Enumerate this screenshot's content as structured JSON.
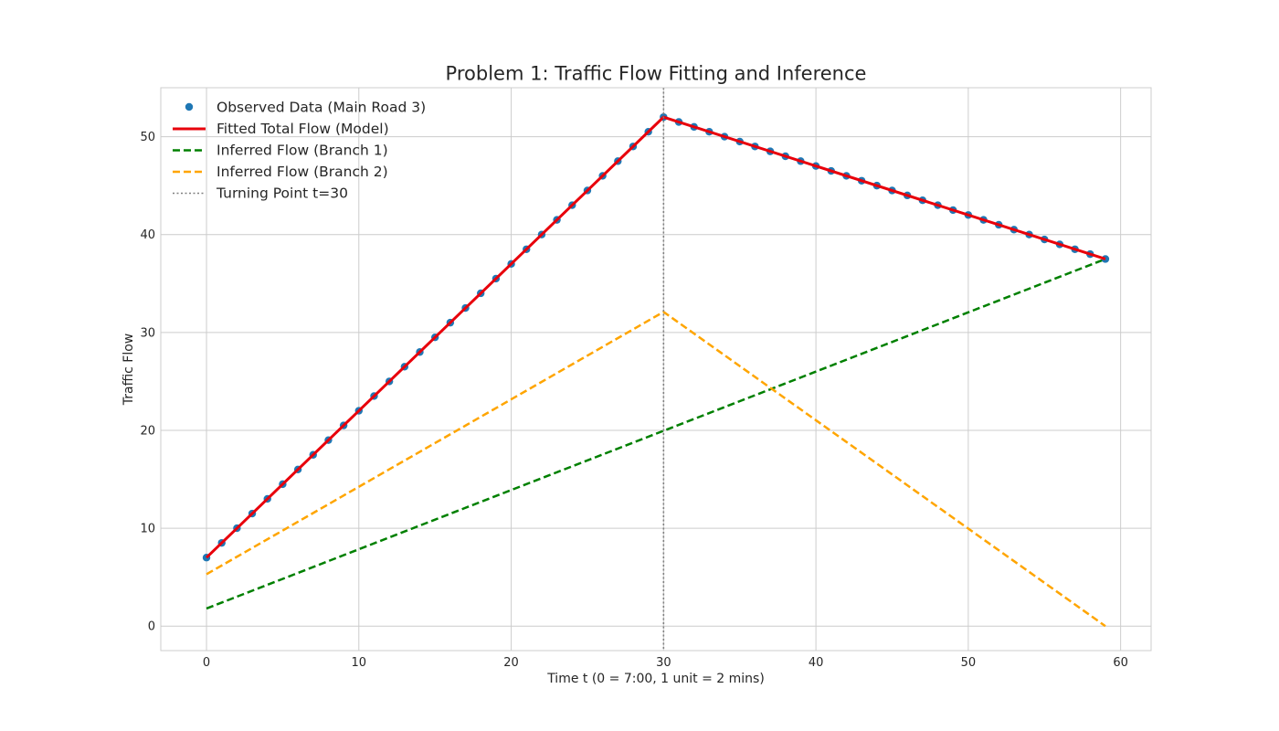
{
  "chart_data": {
    "type": "line",
    "title": "Problem 1: Traffic Flow Fitting and Inference",
    "xlabel": "Time t (0 = 7:00, 1 unit = 2 mins)",
    "ylabel": "Traffic Flow",
    "xlim": [
      -3,
      62
    ],
    "ylim": [
      -2.5,
      55
    ],
    "xticks": [
      0,
      10,
      20,
      30,
      40,
      50,
      60
    ],
    "yticks": [
      0,
      10,
      20,
      30,
      40,
      50
    ],
    "grid": true,
    "legend_position": "top-left",
    "turning_point": {
      "x": 30,
      "label": "Turning Point t=30",
      "color": "#808080"
    },
    "observed": {
      "name": "Observed Data (Main Road 3)",
      "color": "#1f77b4",
      "x": [
        0,
        1,
        2,
        3,
        4,
        5,
        6,
        7,
        8,
        9,
        10,
        11,
        12,
        13,
        14,
        15,
        16,
        17,
        18,
        19,
        20,
        21,
        22,
        23,
        24,
        25,
        26,
        27,
        28,
        29,
        30,
        31,
        32,
        33,
        34,
        35,
        36,
        37,
        38,
        39,
        40,
        41,
        42,
        43,
        44,
        45,
        46,
        47,
        48,
        49,
        50,
        51,
        52,
        53,
        54,
        55,
        56,
        57,
        58,
        59
      ],
      "y": [
        7,
        8.5,
        10,
        11.5,
        13,
        14.5,
        16,
        17.5,
        19,
        20.5,
        22,
        23.5,
        25,
        26.5,
        28,
        29.5,
        31,
        32.5,
        34,
        35.5,
        37,
        38.5,
        40,
        41.5,
        43,
        44.5,
        46,
        47.5,
        49,
        50.5,
        52,
        51.5,
        51,
        50.5,
        50,
        49.5,
        49,
        48.5,
        48,
        47.5,
        47,
        46.5,
        46,
        45.5,
        45,
        44.5,
        44,
        43.5,
        43,
        42.5,
        42,
        41.5,
        41,
        40.5,
        40,
        39.5,
        39,
        38.5,
        38,
        37.5
      ]
    },
    "series": [
      {
        "name": "Fitted Total Flow (Model)",
        "color": "#e8000b",
        "style": "solid",
        "x": [
          0,
          30,
          59
        ],
        "y": [
          7,
          52,
          37.5
        ]
      },
      {
        "name": "Inferred Flow (Branch 1)",
        "color": "#008000",
        "style": "dashed",
        "x": [
          0,
          59
        ],
        "y": [
          1.8,
          37.5
        ]
      },
      {
        "name": "Inferred Flow (Branch 2)",
        "color": "#ffa500",
        "style": "dashed",
        "x": [
          0,
          30,
          59
        ],
        "y": [
          5.3,
          32.1,
          0
        ]
      }
    ]
  }
}
